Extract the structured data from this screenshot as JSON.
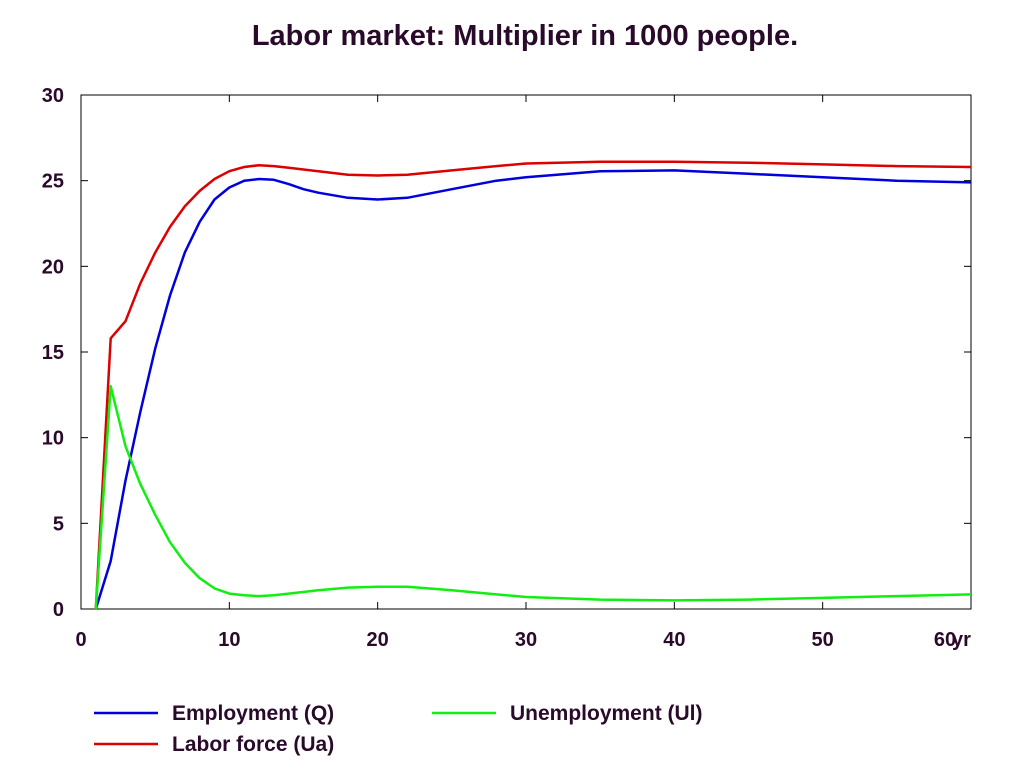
{
  "chart_data": {
    "type": "line",
    "title": "Labor market: Multiplier in 1000 people.",
    "x_unit_label": "yr",
    "xlim": [
      0,
      60
    ],
    "ylim": [
      0,
      30
    ],
    "x_ticks": [
      0,
      10,
      20,
      30,
      40,
      50,
      60
    ],
    "y_ticks": [
      0,
      5,
      10,
      15,
      20,
      25,
      30
    ],
    "grid": false,
    "legend_position": "bottom",
    "series": [
      {
        "name": "Employment (Q)",
        "color": "#0000dd",
        "x": [
          1,
          2,
          3,
          4,
          5,
          6,
          7,
          8,
          9,
          10,
          11,
          12,
          13,
          14,
          15,
          16,
          18,
          20,
          22,
          25,
          28,
          30,
          35,
          40,
          45,
          50,
          55,
          60
        ],
        "y": [
          0,
          2.8,
          7.5,
          11.5,
          15.2,
          18.3,
          20.8,
          22.6,
          23.9,
          24.6,
          25.0,
          25.1,
          25.05,
          24.8,
          24.5,
          24.3,
          24.0,
          23.9,
          24.0,
          24.5,
          25.0,
          25.2,
          25.55,
          25.6,
          25.4,
          25.2,
          25.0,
          24.9
        ]
      },
      {
        "name": "Labor force (Ua)",
        "color": "#dd0000",
        "x": [
          1,
          2,
          3,
          4,
          5,
          6,
          7,
          8,
          9,
          10,
          11,
          12,
          13,
          14,
          16,
          18,
          20,
          22,
          25,
          28,
          30,
          35,
          40,
          45,
          50,
          55,
          60
        ],
        "y": [
          0,
          15.8,
          16.8,
          19.0,
          20.8,
          22.3,
          23.5,
          24.4,
          25.1,
          25.55,
          25.8,
          25.9,
          25.85,
          25.75,
          25.55,
          25.35,
          25.3,
          25.35,
          25.6,
          25.85,
          26.0,
          26.1,
          26.1,
          26.05,
          25.95,
          25.85,
          25.8
        ]
      },
      {
        "name": "Unemployment (Ul)",
        "color": "#11ee11",
        "x": [
          1,
          2,
          3,
          4,
          5,
          6,
          7,
          8,
          9,
          10,
          11,
          12,
          13,
          14,
          16,
          18,
          20,
          22,
          25,
          28,
          30,
          35,
          40,
          45,
          50,
          55,
          60
        ],
        "y": [
          0,
          13.0,
          9.5,
          7.3,
          5.5,
          3.9,
          2.7,
          1.8,
          1.2,
          0.9,
          0.8,
          0.75,
          0.8,
          0.9,
          1.1,
          1.25,
          1.3,
          1.3,
          1.1,
          0.85,
          0.7,
          0.55,
          0.5,
          0.55,
          0.65,
          0.75,
          0.85
        ]
      }
    ]
  }
}
